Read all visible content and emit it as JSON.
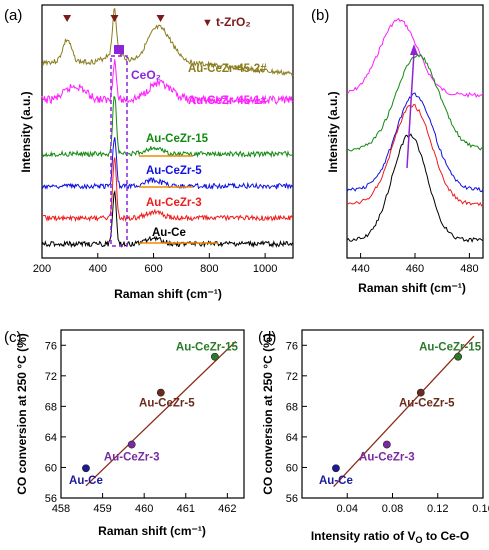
{
  "chart_data": [
    {
      "type": "line",
      "panel_label": "(a)",
      "xlabel": "Raman shift (cm⁻¹)",
      "ylabel": "Intensity (a.u.)",
      "xlim": [
        200,
        1100
      ],
      "xticks": [
        "200",
        "400",
        "600",
        "800",
        "1000"
      ],
      "legend": {
        "marker": "▼",
        "text": "t-ZrO₂",
        "color": "#7b1a1a"
      },
      "annotation_ceo2": {
        "text": "CeO₂",
        "color": "#8e24d8"
      },
      "tzro2_peaks": [
        290,
        460,
        625
      ],
      "series": [
        {
          "name": "Au-CeZr-45-2#",
          "color": "#8a7d1e"
        },
        {
          "name": "Au-CeZr-45-1#",
          "color": "#ff1fff"
        },
        {
          "name": "Au-CeZr-15",
          "color": "#128a12"
        },
        {
          "name": "Au-CeZr-5",
          "color": "#1010e0"
        },
        {
          "name": "Au-CeZr-3",
          "color": "#ee1c1c"
        },
        {
          "name": "Au-Ce",
          "color": "#000000"
        }
      ]
    },
    {
      "type": "line",
      "panel_label": "(b)",
      "xlabel": "Raman shift (cm⁻¹)",
      "ylabel": "Intensity (a.u.)",
      "xlim": [
        435,
        485
      ],
      "xticks": [
        "440",
        "460",
        "480"
      ]
    },
    {
      "type": "scatter",
      "panel_label": "(c)",
      "xlabel": "Raman shift (cm⁻¹)",
      "ylabel": "CO conversion at 250 °C (%)",
      "xlim": [
        458,
        462.4
      ],
      "ylim": [
        56,
        78
      ],
      "xticks": [
        "458",
        "459",
        "460",
        "461",
        "462"
      ],
      "yticks": [
        "56",
        "60",
        "64",
        "68",
        "72",
        "76"
      ],
      "points": [
        {
          "label": "Au-Ce",
          "x": 458.6,
          "y": 59.9,
          "color": "#1a1a9a"
        },
        {
          "label": "Au-CeZr-3",
          "x": 459.7,
          "y": 63.0,
          "color": "#7a2aa0"
        },
        {
          "label": "Au-CeZr-5",
          "x": 460.4,
          "y": 69.8,
          "color": "#6b2a1a"
        },
        {
          "label": "Au-CeZr-15",
          "x": 461.7,
          "y": 74.5,
          "color": "#2a7a2a"
        }
      ],
      "fit_line": {
        "x": [
          458.6,
          462.2
        ],
        "y": [
          57.6,
          76.5
        ],
        "color": "#8b2a1a"
      }
    },
    {
      "type": "scatter",
      "panel_label": "(d)",
      "xlabel": "Intensity ratio of Vₒ to Ce-O",
      "xlabel_parts": [
        "Intensity ratio of V",
        "O",
        " to Ce-O"
      ],
      "ylabel": "CO conversion at 250 °C (%)",
      "xlim": [
        0.0,
        0.16
      ],
      "ylim": [
        56,
        78
      ],
      "xticks": [
        "0.04",
        "0.08",
        "0.12",
        "0.16"
      ],
      "yticks": [
        "56",
        "60",
        "64",
        "68",
        "72",
        "76"
      ],
      "points": [
        {
          "label": "Au-Ce",
          "x": 0.03,
          "y": 59.9,
          "color": "#1a1a9a"
        },
        {
          "label": "Au-CeZr-3",
          "x": 0.075,
          "y": 63.0,
          "color": "#7a2aa0"
        },
        {
          "label": "Au-CeZr-5",
          "x": 0.105,
          "y": 69.8,
          "color": "#6b2a1a"
        },
        {
          "label": "Au-CeZr-15",
          "x": 0.138,
          "y": 74.5,
          "color": "#2a7a2a"
        }
      ],
      "fit_line": {
        "x": [
          0.028,
          0.152
        ],
        "y": [
          57.5,
          77.2
        ],
        "color": "#8b2a1a"
      }
    }
  ]
}
